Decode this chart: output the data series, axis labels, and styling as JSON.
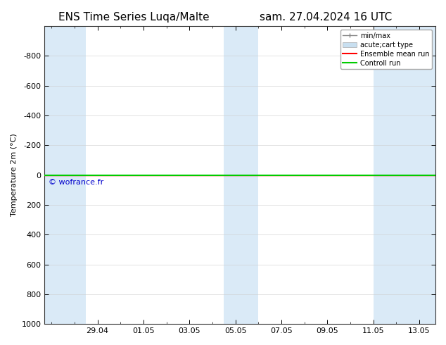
{
  "title_left": "ENS Time Series Luqa/Malte",
  "title_right": "sam. 27.04.2024 16 UTC",
  "ylabel": "Temperature 2m (°C)",
  "ylim_top": -1000,
  "ylim_bottom": 1000,
  "yticks": [
    -800,
    -600,
    -400,
    -200,
    0,
    200,
    400,
    600,
    800,
    1000
  ],
  "xtick_labels": [
    "29.04",
    "01.05",
    "03.05",
    "05.05",
    "07.05",
    "09.05",
    "11.05",
    "13.05"
  ],
  "xtick_positions": [
    2,
    4,
    6,
    8,
    10,
    12,
    14,
    16
  ],
  "xlim": [
    -0.3,
    16.7
  ],
  "background_color": "#ffffff",
  "plot_bg_color": "#ffffff",
  "shaded_bands": [
    {
      "x_start": -0.3,
      "x_end": 1.5,
      "color": "#daeaf7"
    },
    {
      "x_start": 7.5,
      "x_end": 9.0,
      "color": "#daeaf7"
    },
    {
      "x_start": 14.0,
      "x_end": 16.7,
      "color": "#daeaf7"
    }
  ],
  "hline_color_ensemble": "#ff0000",
  "hline_color_control": "#00cc00",
  "hline_linewidth_ensemble": 1.0,
  "hline_linewidth_control": 1.5,
  "watermark": "© wofrance.fr",
  "watermark_color": "#0000cc",
  "watermark_fontsize": 8,
  "legend_entries": [
    "min/max",
    "acute;cart type",
    "Ensemble mean run",
    "Controll run"
  ],
  "legend_minmax_color": "#888888",
  "legend_acute_color": "#c8dff0",
  "legend_ens_color": "#ff0000",
  "legend_ctrl_color": "#00cc00",
  "title_fontsize": 11,
  "axis_label_fontsize": 8,
  "tick_fontsize": 8,
  "legend_fontsize": 7
}
